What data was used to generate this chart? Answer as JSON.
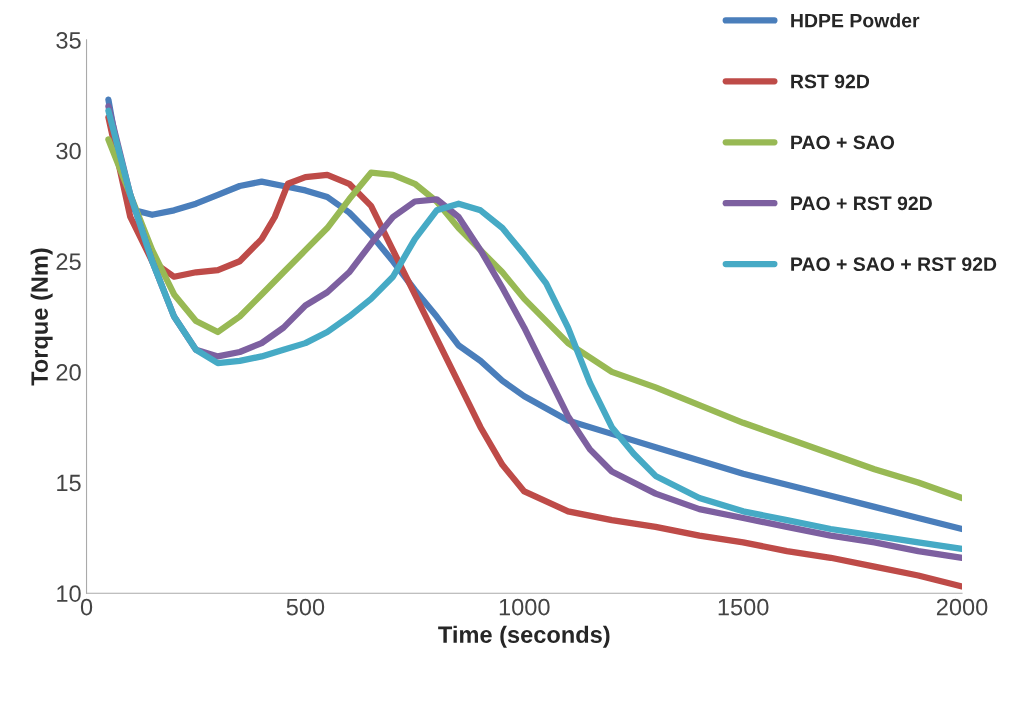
{
  "chart_data": {
    "type": "line",
    "xlabel": "Time (seconds)",
    "ylabel": "Torque (Nm)",
    "xlim": [
      0,
      2000
    ],
    "ylim": [
      10,
      35
    ],
    "xticks": [
      0,
      500,
      1000,
      1500,
      2000
    ],
    "yticks": [
      10,
      15,
      20,
      25,
      30,
      35
    ],
    "grid": false,
    "legend": "top right",
    "marker": "none",
    "line_style": "solid",
    "series": [
      {
        "name": "HDPE Powder",
        "color": "#4a7ebb",
        "x": [
          50,
          80,
          110,
          150,
          200,
          250,
          300,
          350,
          400,
          450,
          500,
          550,
          600,
          650,
          700,
          750,
          800,
          850,
          900,
          950,
          1000,
          1100,
          1200,
          1300,
          1400,
          1500,
          1600,
          1700,
          1800,
          1900,
          2000
        ],
        "values": [
          32.3,
          29,
          27.3,
          27.1,
          27.3,
          27.6,
          28,
          28.4,
          28.6,
          28.4,
          28.2,
          27.9,
          27.2,
          26.2,
          25,
          23.7,
          22.5,
          21.2,
          20.5,
          19.6,
          18.9,
          17.8,
          17.2,
          16.6,
          16,
          15.4,
          14.9,
          14.4,
          13.9,
          13.4,
          12.9
        ]
      },
      {
        "name": "RST 92D",
        "color": "#be4b48",
        "x": [
          50,
          100,
          150,
          200,
          250,
          300,
          350,
          400,
          430,
          460,
          500,
          550,
          600,
          650,
          700,
          750,
          800,
          850,
          900,
          950,
          1000,
          1100,
          1200,
          1300,
          1400,
          1500,
          1600,
          1700,
          1800,
          1900,
          2000
        ],
        "values": [
          31.5,
          27,
          25,
          24.3,
          24.5,
          24.6,
          25,
          26,
          27,
          28.5,
          28.8,
          28.9,
          28.5,
          27.5,
          25.5,
          23.5,
          21.5,
          19.5,
          17.5,
          15.8,
          14.6,
          13.7,
          13.3,
          13,
          12.6,
          12.3,
          11.9,
          11.6,
          11.2,
          10.8,
          10.3
        ]
      },
      {
        "name": "PAO + SAO",
        "color": "#98b954",
        "x": [
          50,
          100,
          150,
          200,
          250,
          300,
          350,
          400,
          450,
          500,
          550,
          600,
          650,
          700,
          750,
          800,
          850,
          900,
          950,
          1000,
          1100,
          1200,
          1300,
          1400,
          1500,
          1600,
          1700,
          1800,
          1900,
          2000
        ],
        "values": [
          30.5,
          28,
          25.5,
          23.5,
          22.3,
          21.8,
          22.5,
          23.5,
          24.5,
          25.5,
          26.5,
          27.8,
          29,
          28.9,
          28.5,
          27.7,
          26.5,
          25.5,
          24.5,
          23.3,
          21.3,
          20,
          19.3,
          18.5,
          17.7,
          17,
          16.3,
          15.6,
          15,
          14.3
        ]
      },
      {
        "name": "PAO + RST 92D",
        "color": "#7d60a0",
        "x": [
          50,
          100,
          150,
          200,
          250,
          300,
          350,
          400,
          450,
          500,
          550,
          600,
          650,
          700,
          750,
          800,
          850,
          900,
          950,
          1000,
          1050,
          1100,
          1150,
          1200,
          1300,
          1400,
          1500,
          1600,
          1700,
          1800,
          1900,
          2000
        ],
        "values": [
          32,
          28,
          25,
          22.5,
          21,
          20.7,
          20.9,
          21.3,
          22,
          23,
          23.6,
          24.5,
          25.8,
          27,
          27.7,
          27.8,
          27,
          25.5,
          23.8,
          22,
          20,
          18,
          16.5,
          15.5,
          14.5,
          13.8,
          13.4,
          13,
          12.6,
          12.3,
          11.9,
          11.6
        ]
      },
      {
        "name": "PAO + SAO + RST 92D",
        "color": "#46aac5",
        "x": [
          50,
          100,
          150,
          200,
          250,
          300,
          350,
          400,
          450,
          500,
          550,
          600,
          650,
          700,
          750,
          800,
          850,
          900,
          950,
          1000,
          1050,
          1100,
          1150,
          1200,
          1250,
          1300,
          1400,
          1500,
          1600,
          1700,
          1800,
          1900,
          2000
        ],
        "values": [
          31.8,
          28,
          25,
          22.5,
          21,
          20.4,
          20.5,
          20.7,
          21,
          21.3,
          21.8,
          22.5,
          23.3,
          24.3,
          26,
          27.3,
          27.6,
          27.3,
          26.5,
          25.3,
          24,
          22,
          19.5,
          17.5,
          16.3,
          15.3,
          14.3,
          13.7,
          13.3,
          12.9,
          12.6,
          12.3,
          12
        ]
      }
    ]
  }
}
